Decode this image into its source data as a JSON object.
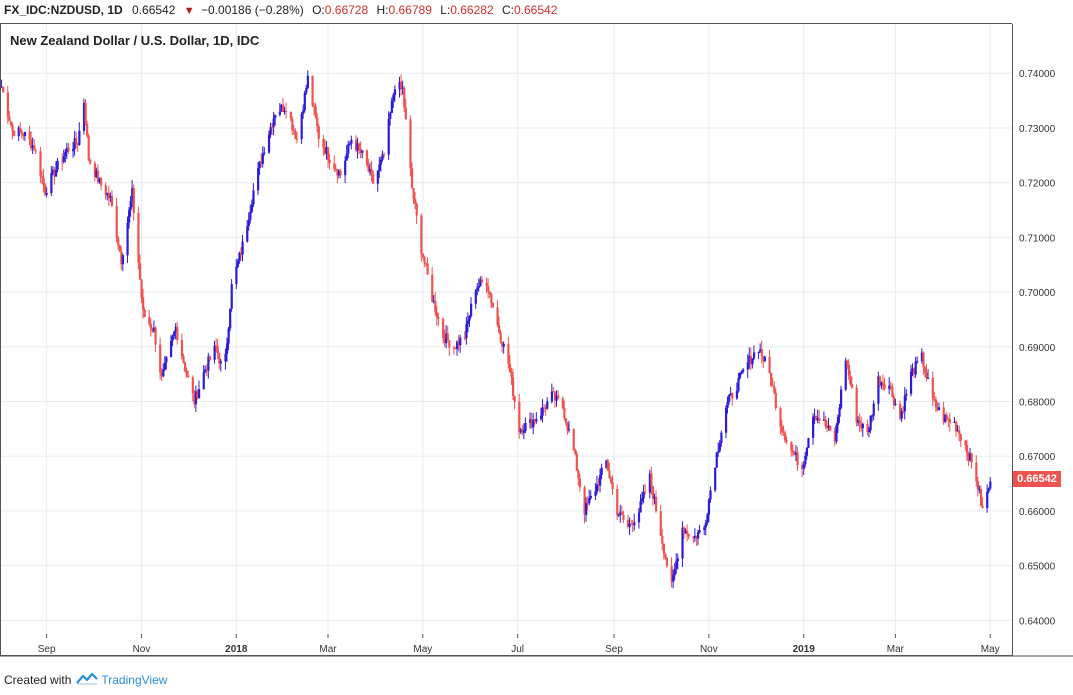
{
  "header": {
    "symbol": "FX_IDC:NZDUSD, 1D",
    "last": "0.66542",
    "change": "−0.00186 (−0.28%)",
    "open_label": "O:",
    "open": "0.66728",
    "high_label": "H:",
    "high": "0.66789",
    "low_label": "L:",
    "low": "0.66282",
    "close_label": "C:",
    "close": "0.66542",
    "down_icon": "down-triangle-icon"
  },
  "last_price_tag": "0.66542",
  "footer": {
    "created_with": "Created with",
    "brand": "TradingView",
    "brand_icon": "tradingview-logo-icon"
  },
  "colors": {
    "up": "#2d1bd9",
    "down": "#ef5350",
    "grid": "#e6edf3",
    "last_tag": "#ef5350"
  },
  "chart_data": {
    "type": "line",
    "title": "New Zealand Dollar / U.S. Dollar, 1D, IDC",
    "xlabel": "",
    "ylabel": "",
    "ylim": [
      0.6375,
      0.749
    ],
    "y_ticks": [
      0.74,
      0.73,
      0.72,
      0.71,
      0.7,
      0.69,
      0.68,
      0.67,
      0.66,
      0.65,
      0.64
    ],
    "y_tick_labels": [
      "0.74000",
      "0.73000",
      "0.72000",
      "0.71000",
      "0.70000",
      "0.69000",
      "0.68000",
      "0.67000",
      "0.66000",
      "0.65000",
      "0.64000"
    ],
    "x_ticks": [
      {
        "label": "Sep",
        "date": "2017-09-01",
        "bold": false
      },
      {
        "label": "Nov",
        "date": "2017-11-01",
        "bold": false
      },
      {
        "label": "2018",
        "date": "2018-01-01",
        "bold": true
      },
      {
        "label": "Mar",
        "date": "2018-03-01",
        "bold": false
      },
      {
        "label": "May",
        "date": "2018-05-01",
        "bold": false
      },
      {
        "label": "Jul",
        "date": "2018-07-01",
        "bold": false
      },
      {
        "label": "Sep",
        "date": "2018-09-01",
        "bold": false
      },
      {
        "label": "Nov",
        "date": "2018-11-01",
        "bold": false
      },
      {
        "label": "2019",
        "date": "2019-01-01",
        "bold": true
      },
      {
        "label": "Mar",
        "date": "2019-03-01",
        "bold": false
      },
      {
        "label": "May",
        "date": "2019-05-01",
        "bold": false
      }
    ],
    "xlim": [
      "2017-08-02",
      "2019-05-15"
    ],
    "grid": true,
    "series": [
      {
        "name": "",
        "points": [
          [
            "2017-08-03",
            0.7375
          ],
          [
            "2017-08-10",
            0.7295
          ],
          [
            "2017-08-17",
            0.729
          ],
          [
            "2017-08-24",
            0.7265
          ],
          [
            "2017-08-31",
            0.7185
          ],
          [
            "2017-09-07",
            0.7225
          ],
          [
            "2017-09-14",
            0.726
          ],
          [
            "2017-09-21",
            0.7275
          ],
          [
            "2017-09-25",
            0.735
          ],
          [
            "2017-09-28",
            0.7245
          ],
          [
            "2017-10-05",
            0.72
          ],
          [
            "2017-10-12",
            0.717
          ],
          [
            "2017-10-19",
            0.706
          ],
          [
            "2017-10-26",
            0.718
          ],
          [
            "2017-11-02",
            0.696
          ],
          [
            "2017-11-09",
            0.693
          ],
          [
            "2017-11-14",
            0.684
          ],
          [
            "2017-11-23",
            0.6935
          ],
          [
            "2017-11-30",
            0.685
          ],
          [
            "2017-12-05",
            0.68
          ],
          [
            "2017-12-12",
            0.686
          ],
          [
            "2017-12-19",
            0.69
          ],
          [
            "2017-12-24",
            0.6845
          ],
          [
            "2017-12-29",
            0.701
          ],
          [
            "2018-01-05",
            0.7085
          ],
          [
            "2018-01-12",
            0.7185
          ],
          [
            "2018-01-19",
            0.7265
          ],
          [
            "2018-01-26",
            0.733
          ],
          [
            "2018-02-02",
            0.734
          ],
          [
            "2018-02-09",
            0.728
          ],
          [
            "2018-02-16",
            0.739
          ],
          [
            "2018-02-23",
            0.7285
          ],
          [
            "2018-03-02",
            0.7245
          ],
          [
            "2018-03-09",
            0.7215
          ],
          [
            "2018-03-16",
            0.728
          ],
          [
            "2018-03-23",
            0.725
          ],
          [
            "2018-03-30",
            0.72
          ],
          [
            "2018-04-06",
            0.725
          ],
          [
            "2018-04-13",
            0.738
          ],
          [
            "2018-04-18",
            0.737
          ],
          [
            "2018-04-24",
            0.719
          ],
          [
            "2018-04-30",
            0.708
          ],
          [
            "2018-05-07",
            0.699
          ],
          [
            "2018-05-14",
            0.692
          ],
          [
            "2018-05-21",
            0.69
          ],
          [
            "2018-05-28",
            0.692
          ],
          [
            "2018-06-04",
            0.701
          ],
          [
            "2018-06-11",
            0.702
          ],
          [
            "2018-06-18",
            0.694
          ],
          [
            "2018-06-25",
            0.687
          ],
          [
            "2018-07-02",
            0.675
          ],
          [
            "2018-07-09",
            0.676
          ],
          [
            "2018-07-16",
            0.678
          ],
          [
            "2018-07-23",
            0.681
          ],
          [
            "2018-07-30",
            0.679
          ],
          [
            "2018-08-06",
            0.671
          ],
          [
            "2018-08-13",
            0.66
          ],
          [
            "2018-08-20",
            0.664
          ],
          [
            "2018-08-27",
            0.669
          ],
          [
            "2018-09-03",
            0.66
          ],
          [
            "2018-09-10",
            0.657
          ],
          [
            "2018-09-17",
            0.66
          ],
          [
            "2018-09-24",
            0.666
          ],
          [
            "2018-10-01",
            0.656
          ],
          [
            "2018-10-08",
            0.646
          ],
          [
            "2018-10-15",
            0.657
          ],
          [
            "2018-10-22",
            0.655
          ],
          [
            "2018-10-29",
            0.657
          ],
          [
            "2018-11-05",
            0.669
          ],
          [
            "2018-11-12",
            0.679
          ],
          [
            "2018-11-19",
            0.683
          ],
          [
            "2018-11-26",
            0.687
          ],
          [
            "2018-12-03",
            0.69
          ],
          [
            "2018-12-10",
            0.685
          ],
          [
            "2018-12-17",
            0.676
          ],
          [
            "2018-12-24",
            0.671
          ],
          [
            "2018-12-31",
            0.668
          ],
          [
            "2019-01-07",
            0.678
          ],
          [
            "2019-01-14",
            0.676
          ],
          [
            "2019-01-21",
            0.673
          ],
          [
            "2019-01-28",
            0.688
          ],
          [
            "2019-02-04",
            0.677
          ],
          [
            "2019-02-11",
            0.674
          ],
          [
            "2019-02-18",
            0.684
          ],
          [
            "2019-02-25",
            0.683
          ],
          [
            "2019-03-04",
            0.677
          ],
          [
            "2019-03-11",
            0.685
          ],
          [
            "2019-03-18",
            0.688
          ],
          [
            "2019-03-25",
            0.68
          ],
          [
            "2019-04-01",
            0.677
          ],
          [
            "2019-04-08",
            0.676
          ],
          [
            "2019-04-15",
            0.672
          ],
          [
            "2019-04-22",
            0.666
          ],
          [
            "2019-04-26",
            0.66
          ],
          [
            "2019-05-01",
            0.6654
          ]
        ]
      }
    ]
  }
}
